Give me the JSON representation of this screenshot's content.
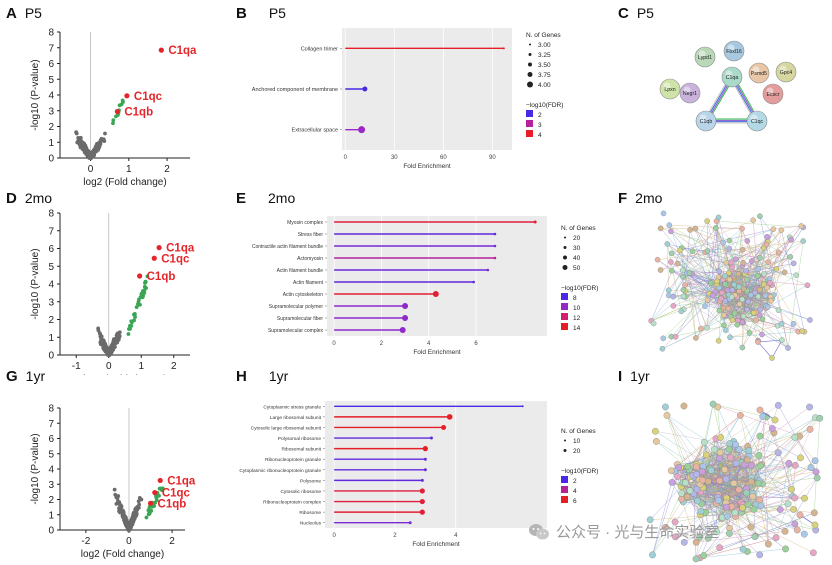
{
  "panels": {
    "A": {
      "letter": "A",
      "stage": "P5"
    },
    "B": {
      "letter": "B",
      "stage": "P5"
    },
    "C": {
      "letter": "C",
      "stage": "P5"
    },
    "D": {
      "letter": "D",
      "stage": "2mo"
    },
    "E": {
      "letter": "E",
      "stage": "2mo"
    },
    "F": {
      "letter": "F",
      "stage": "2mo"
    },
    "G": {
      "letter": "G",
      "stage": "1yr"
    },
    "H": {
      "letter": "H",
      "stage": "1yr"
    },
    "I": {
      "letter": "I",
      "stage": "1yr"
    }
  },
  "chart_data": [
    {
      "id": "A",
      "type": "scatter",
      "title": "P5",
      "xlabel": "log2 (Fold change)",
      "ylabel": "-log10 (P-value)",
      "xlim": [
        -0.8,
        2.6
      ],
      "ylim": [
        0,
        8
      ],
      "xticks": [
        "0",
        "1",
        "2"
      ],
      "yticks": [
        "0",
        "1",
        "2",
        "3",
        "4",
        "5",
        "6",
        "7",
        "8"
      ],
      "highlights": [
        {
          "label": "C1qa",
          "x": 1.85,
          "y": 6.85
        },
        {
          "label": "C1qc",
          "x": 0.95,
          "y": 3.95
        },
        {
          "label": "C1qb",
          "x": 0.7,
          "y": 2.95
        }
      ]
    },
    {
      "id": "B",
      "type": "bar",
      "title": "P5",
      "categories": [
        "Collagen trimer",
        "Anchored component of membrane",
        "Extracellular space"
      ],
      "values": [
        97,
        12,
        10
      ],
      "xlabel": "Fold Enrichment",
      "xlim": [
        -2,
        102
      ],
      "xticks": [
        "0",
        "30",
        "60",
        "90"
      ],
      "legend_size_title": "N. of Genes",
      "legend_sizes": [
        "3.00",
        "3.25",
        "3.50",
        "3.75",
        "4.00"
      ],
      "legend_color_title": "−log10(FDR)",
      "legend_colors": [
        "2",
        "3",
        "4"
      ]
    },
    {
      "id": "D",
      "type": "scatter",
      "title": "2mo",
      "xlabel": "log2 (Fold change)",
      "ylabel": "-log10 (P-value)",
      "xlim": [
        -1.5,
        2.5
      ],
      "ylim": [
        0,
        8
      ],
      "xticks": [
        "-1",
        "0",
        "1",
        "2"
      ],
      "yticks": [
        "0",
        "1",
        "2",
        "3",
        "4",
        "5",
        "6",
        "7",
        "8"
      ],
      "highlights": [
        {
          "label": "C1qa",
          "x": 1.55,
          "y": 6.05
        },
        {
          "label": "C1qc",
          "x": 1.4,
          "y": 5.45
        },
        {
          "label": "C1qb",
          "x": 0.95,
          "y": 4.45
        }
      ]
    },
    {
      "id": "E",
      "type": "bar",
      "title": "2mo",
      "categories": [
        "Myosin complex",
        "Stress fiber",
        "Contractile actin filament bundle",
        "Actomyosin",
        "Actin filament bundle",
        "Actin filament",
        "Actin cytoskeleton",
        "Supramolecular polymer",
        "Supramolecular fiber",
        "Supramolecular complex"
      ],
      "values": [
        8.5,
        6.8,
        6.8,
        6.8,
        6.5,
        5.9,
        4.3,
        3.0,
        3.0,
        2.9
      ],
      "xlabel": "Fold Enrichment",
      "xlim": [
        -0.3,
        9
      ],
      "xticks": [
        "0",
        "2",
        "4",
        "6"
      ],
      "legend_size_title": "N. of Genes",
      "legend_sizes": [
        "20",
        "30",
        "40",
        "50"
      ],
      "legend_color_title": "−log10(FDR)",
      "legend_colors": [
        "8",
        "10",
        "12",
        "14"
      ]
    },
    {
      "id": "G",
      "type": "scatter",
      "title": "1yr",
      "xlabel": "log2 (Fold change)",
      "ylabel": "-log10 (P-value)",
      "xlim": [
        -3.2,
        2.6
      ],
      "ylim": [
        0,
        8
      ],
      "xticks": [
        "-2",
        "0",
        "2"
      ],
      "yticks": [
        "0",
        "1",
        "2",
        "3",
        "4",
        "5",
        "6",
        "7",
        "8"
      ],
      "highlights": [
        {
          "label": "C1qa",
          "x": 1.45,
          "y": 3.25
        },
        {
          "label": "C1qc",
          "x": 1.2,
          "y": 2.45
        },
        {
          "label": "C1qb",
          "x": 1.0,
          "y": 1.75
        }
      ]
    },
    {
      "id": "H",
      "type": "bar",
      "title": "1yr",
      "categories": [
        "Cytoplasmic stress granule",
        "Large ribosomal subunit",
        "Cytosolic large ribosomal subunit",
        "Polysomal ribosome",
        "Ribosomal subunit",
        "Ribonucleoprotein granule",
        "Cytoplasmic ribonucleoprotein granule",
        "Polysome",
        "Cytosolic ribosome",
        "Ribonucleoprotein complex",
        "Ribosome",
        "Nucleolus"
      ],
      "values": [
        6.2,
        3.8,
        3.6,
        3.2,
        3.0,
        3.0,
        3.0,
        2.9,
        2.9,
        2.9,
        2.9,
        2.5
      ],
      "xlabel": "Fold Enrichment",
      "xlim": [
        -0.3,
        7
      ],
      "xticks": [
        "0",
        "2",
        "4"
      ],
      "legend_size_title": "N. of Genes",
      "legend_sizes": [
        "10",
        "20"
      ],
      "legend_color_title": "−log10(FDR)",
      "legend_colors": [
        "2",
        "4",
        "6"
      ]
    }
  ],
  "networks": {
    "C": {
      "nodes": [
        "Fbxl16",
        "Lypd1",
        "Psmd5",
        "Gpc4",
        "Lpxn",
        "Ecscr",
        "C1qa",
        "Negr1",
        "C1qb",
        "C1qc"
      ]
    }
  },
  "watermark": "公众号 · 光与生命实验室"
}
